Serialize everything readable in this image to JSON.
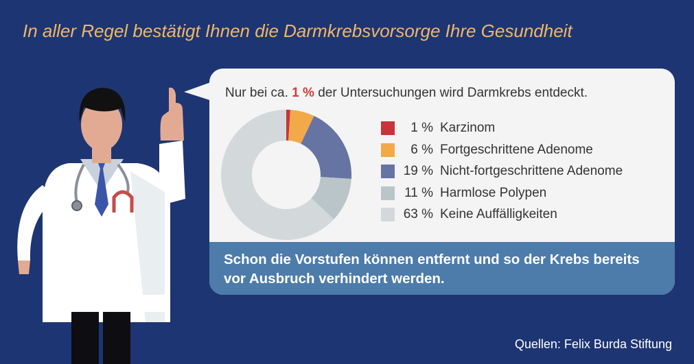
{
  "headline": "In aller Regel bestätigt Ihnen die Darmkrebsvorsorge Ihre Gesundheit",
  "intro": {
    "prefix": "Nur bei ca.",
    "highlight": "1 %",
    "suffix": "der Untersuchungen wird Darmkrebs entdeckt."
  },
  "chart_data": {
    "type": "pie",
    "donut": true,
    "series": [
      {
        "name": "Karzinom",
        "value": 1,
        "label": "1 %",
        "color": "#c8343a"
      },
      {
        "name": "Fortgeschrittene Adenome",
        "value": 6,
        "label": "6 %",
        "color": "#f2a94a"
      },
      {
        "name": "Nicht-fortgeschrittene Adenome",
        "value": 19,
        "label": "19 %",
        "color": "#6674a3"
      },
      {
        "name": "Harmlose Polypen",
        "value": 11,
        "label": "11 %",
        "color": "#b9c5c8"
      },
      {
        "name": "Keine Auffälligkeiten",
        "value": 63,
        "label": "63 %",
        "color": "#d3d9db"
      }
    ],
    "legend_position": "right"
  },
  "footer_message": "Schon die Vorstufen können entfernt und so der Krebs bereits vor Ausbruch verhindert werden.",
  "source": "Quellen: Felix Burda Stiftung",
  "colors": {
    "background": "#1e3573",
    "headline": "#f0b865",
    "bubble": "#f4f4f4",
    "footer_band": "#4d7cab",
    "highlight": "#d43a3a"
  }
}
